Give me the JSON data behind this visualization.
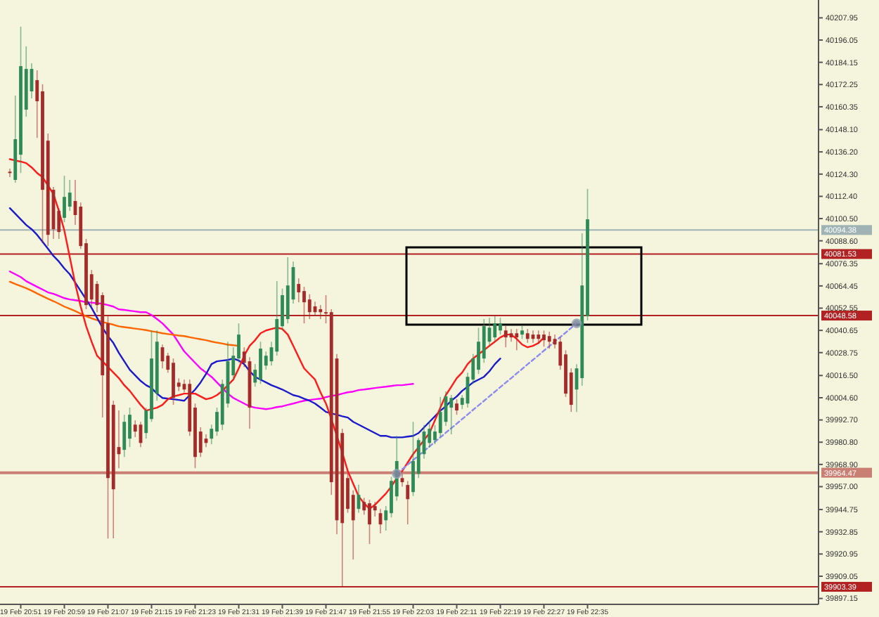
{
  "chart_data": {
    "type": "candlestick",
    "ylim": [
      39894,
      40217.5
    ],
    "categories": [
      null,
      null,
      "19 Feb 20:51",
      null,
      null,
      null,
      null,
      null,
      null,
      null,
      "19 Feb 20:59",
      null,
      null,
      null,
      null,
      null,
      null,
      null,
      "19 Feb 21:07",
      null,
      null,
      null,
      null,
      null,
      null,
      null,
      "19 Feb 21:15",
      null,
      null,
      null,
      null,
      null,
      null,
      null,
      "19 Feb 21:23",
      null,
      null,
      null,
      null,
      null,
      null,
      null,
      "19 Feb 21:31",
      null,
      null,
      null,
      null,
      null,
      null,
      null,
      "19 Feb 21:39",
      null,
      null,
      null,
      null,
      null,
      null,
      null,
      "19 Feb 21:47",
      null,
      null,
      null,
      null,
      null,
      null,
      null,
      "19 Feb 21:55",
      null,
      null,
      null,
      null,
      null,
      null,
      null,
      "19 Feb 22:03",
      null,
      null,
      null,
      null,
      null,
      null,
      null,
      "19 Feb 22:11",
      null,
      null,
      null,
      null,
      null,
      null,
      null,
      "19 Feb 22:19",
      null,
      null,
      null,
      null,
      null,
      null,
      null,
      "19 Feb 22:27",
      null,
      null,
      null,
      null,
      null,
      null,
      null,
      "19 Feb 22:35"
    ],
    "yticks": [
      40207.95,
      40196.05,
      40184.15,
      40172.25,
      40160.35,
      {
        "value": 40148.1,
        "label": "40148.10"
      },
      {
        "value": 40136.2,
        "label": "40136.20"
      },
      {
        "value": 40124.3,
        "label": "40124.30"
      },
      {
        "value": 40112.4,
        "label": "40112.40"
      },
      {
        "value": 40100.5,
        "label": "40100.50"
      },
      {
        "value": 40088.6,
        "label": "40088.60"
      },
      40076.35,
      40064.45,
      40052.55,
      40040.65,
      40028.75,
      {
        "value": 40016.5,
        "label": "40016.50"
      },
      {
        "value": 40004.6,
        "label": "40004.60"
      },
      {
        "value": 39992.7,
        "label": "39992.70"
      },
      {
        "value": 39980.8,
        "label": "39980.80"
      },
      {
        "value": 39968.9,
        "label": "39968.90"
      },
      {
        "value": 39957,
        "label": "39957.00"
      },
      39944.75,
      39932.85,
      39920.95,
      39909.05,
      39897.15
    ],
    "ref_lines": [
      {
        "axis": "y",
        "value": 40094.38,
        "label": "40094.38",
        "color": "#9fb3b5"
      },
      {
        "axis": "y",
        "value": 40081.53,
        "label": "40081.53",
        "color": "#b22222"
      },
      {
        "axis": "y",
        "value": 40048.58,
        "label": "40048.58",
        "color": "#b22222"
      },
      {
        "axis": "y",
        "value": 39964.47,
        "label": "39964.47",
        "color": "#c97f74"
      },
      {
        "axis": "y",
        "value": 39903.39,
        "label": "39903.39",
        "color": "#b22222"
      }
    ],
    "ohlc": [
      [
        40125.6,
        40127.2,
        40122.7,
        40124.9
      ],
      [
        40121.2,
        40166.3,
        40119.7,
        40143.0
      ],
      [
        40134.7,
        40203.2,
        40124.9,
        40182.1
      ],
      [
        40158.8,
        40192.7,
        40155,
        40180.6
      ],
      [
        40168.6,
        40183.6,
        40164.8,
        40180.6
      ],
      [
        40174.6,
        40179.9,
        40143.7,
        40163.3
      ],
      [
        40168.6,
        40172.4,
        40087.3,
        40115.9
      ],
      [
        40142.2,
        40146,
        40085.8,
        40091.8
      ],
      [
        40115.9,
        40117.4,
        40089.6,
        40094.8
      ],
      [
        40104.6,
        40106.1,
        40089.6,
        40093.3
      ],
      [
        40100.9,
        40123.4,
        40098.6,
        40112.1
      ],
      [
        40106.9,
        40121.2,
        40104.6,
        40114.4
      ],
      [
        40109.9,
        40121.2,
        40097.1,
        40102.4
      ],
      [
        40106.9,
        40109.1,
        40084.3,
        40085.8
      ],
      [
        40087.3,
        40089.6,
        40052,
        40054.2
      ],
      [
        40070.7,
        40073,
        40053.4,
        40057.2
      ],
      [
        40065.5,
        40067,
        40050.4,
        40054.2
      ],
      [
        40059.5,
        40061,
        39994,
        40016.6
      ],
      [
        40044.4,
        40048.2,
        39929.3,
        39961.6
      ],
      [
        40000.8,
        40003,
        39929.3,
        39955.6
      ],
      [
        39978.2,
        39997.8,
        39966.9,
        39974.4
      ],
      [
        39976.7,
        39995.5,
        39972.9,
        39991.7
      ],
      [
        39982.7,
        39999.3,
        39978.2,
        39995.5
      ],
      [
        39990.2,
        39992.5,
        39983.5,
        39986.5
      ],
      [
        39990.2,
        39991.7,
        39978.2,
        39980.4
      ],
      [
        39985.7,
        39999.3,
        39982.7,
        39997.8
      ],
      [
        39993.2,
        40040.6,
        39991.7,
        40025.6
      ],
      [
        40006.8,
        40040.6,
        40003,
        40034.6
      ],
      [
        40031.6,
        40033.1,
        40020.3,
        40024.1
      ],
      [
        40027.1,
        40028.6,
        40018,
        40019.6
      ],
      [
        40023.3,
        40025.6,
        40000.8,
        40004.5
      ],
      [
        40012.7,
        40015,
        40008.2,
        40010.5
      ],
      [
        40012,
        40014.3,
        40007.5,
        40009
      ],
      [
        40012,
        40014.3,
        39984.2,
        39986.5
      ],
      [
        39999.3,
        40001.5,
        39966.9,
        39972.9
      ],
      [
        39986.5,
        39988.8,
        39972.9,
        39975.2
      ],
      [
        39982.7,
        39985,
        39978.2,
        39980.4
      ],
      [
        39982.7,
        39990.2,
        39979.7,
        39988
      ],
      [
        39986.5,
        39999.3,
        39984.2,
        39997
      ],
      [
        39990.2,
        40014.3,
        39987.3,
        40012
      ],
      [
        40001.5,
        40034.6,
        39999.3,
        40024.1
      ],
      [
        40016.6,
        40031.6,
        40014.3,
        40027.1
      ],
      [
        40025.6,
        40044.4,
        40023.3,
        40038.4
      ],
      [
        40029.3,
        40031.6,
        40021,
        40023.3
      ],
      [
        40024.1,
        40026.3,
        39988,
        39999.3
      ],
      [
        40012.7,
        40022.6,
        40010.5,
        40019.6
      ],
      [
        40014.3,
        40034.6,
        40012,
        40030.9
      ],
      [
        40021.8,
        40029.3,
        40019.6,
        40027.1
      ],
      [
        40024.1,
        40034.6,
        40021.8,
        40031.6
      ],
      [
        40029.3,
        40067,
        40027.1,
        40046.7
      ],
      [
        40042.9,
        40063,
        40040.6,
        40059.5
      ],
      [
        40046.7,
        40079.8,
        40044.4,
        40064.7
      ],
      [
        40057.2,
        40077.5,
        40055,
        40074.5
      ],
      [
        40065.5,
        40068.5,
        40055.7,
        40061
      ],
      [
        40061.7,
        40064,
        40044.4,
        40055.7
      ],
      [
        40057.2,
        40060,
        40046.7,
        40050.4
      ],
      [
        40053.5,
        40056,
        40048.2,
        40050.4
      ],
      [
        40052,
        40054.2,
        40046.7,
        40050.4
      ],
      [
        40050.4,
        40059.5,
        40044.4,
        40049.7
      ],
      [
        40050.4,
        40052,
        39952.6,
        39959.4
      ],
      [
        40025.6,
        40028,
        39931.5,
        39939
      ],
      [
        39985.7,
        39988,
        39903.7,
        39937.5
      ],
      [
        39961.6,
        39964,
        39943,
        39945.1
      ],
      [
        39952.6,
        39955,
        39918,
        39939
      ],
      [
        39945.1,
        39958,
        39943,
        39952.6
      ],
      [
        39948.8,
        39951,
        39942,
        39944.3
      ],
      [
        39948.1,
        39950,
        39926.3,
        39936.8
      ],
      [
        39946.6,
        39948.8,
        39941,
        39944.3
      ],
      [
        39942.8,
        39945.1,
        39932,
        39936.8
      ],
      [
        39939,
        39946.6,
        39933.5,
        39944.3
      ],
      [
        39942.8,
        39962.3,
        39940.5,
        39960.1
      ],
      [
        39951.8,
        39984.2,
        39949.5,
        39970.7
      ],
      [
        39961.6,
        39963.9,
        39957,
        39959.4
      ],
      [
        39957.9,
        39960,
        39936.8,
        39950.3
      ],
      [
        39954.1,
        39991.7,
        39952,
        39970.7
      ],
      [
        39963.9,
        39983,
        39961.6,
        39981.9
      ],
      [
        39974.4,
        39990,
        39972,
        39986.5
      ],
      [
        39980.4,
        39992,
        39978,
        39988
      ],
      [
        39981.9,
        39990,
        39979.7,
        39986.5
      ],
      [
        39985.7,
        40005,
        39983.5,
        39997
      ],
      [
        39991.7,
        40008,
        39989.5,
        40005.3
      ],
      [
        39999.3,
        40006,
        39985,
        40004.5
      ],
      [
        40001.5,
        40003.8,
        39995.5,
        39997.8
      ],
      [
        40000.8,
        40006,
        39998.5,
        40004.5
      ],
      [
        40001.5,
        40018,
        39999.3,
        40015.8
      ],
      [
        40014.3,
        40028,
        40012,
        40025.6
      ],
      [
        40019.6,
        40042,
        40017.3,
        40034.6
      ],
      [
        40025.6,
        40046.7,
        40023.3,
        40042.9
      ],
      [
        40034.6,
        40047.4,
        40032.4,
        40042.1
      ],
      [
        40036.9,
        40048.2,
        40034.6,
        40044.4
      ],
      [
        40040.6,
        40047.4,
        40038.4,
        40044.4
      ],
      [
        40040.6,
        40043,
        40031.6,
        40036.9
      ],
      [
        40039.1,
        40041.4,
        40034.6,
        40036.9
      ],
      [
        40039.1,
        40041.4,
        40030,
        40036.9
      ],
      [
        40038.4,
        40043,
        40036,
        40040.6
      ],
      [
        40039.1,
        40041.4,
        40034,
        40036.1
      ],
      [
        40038.4,
        40040.6,
        40034,
        40036.1
      ],
      [
        40038.4,
        40040.6,
        40033.5,
        40036.1
      ],
      [
        40038.4,
        40040.6,
        40032,
        40035.4
      ],
      [
        40037.6,
        40040,
        40030.9,
        40034.6
      ],
      [
        40036.1,
        40038.4,
        40031,
        40033.1
      ],
      [
        40034.6,
        40037,
        40019.6,
        40021.8
      ],
      [
        40027.8,
        40030,
        40005,
        40006.8
      ],
      [
        40018.1,
        40020.3,
        39997,
        40000.8
      ],
      [
        40009,
        40022.6,
        39997,
        40020.3
      ],
      [
        40015.1,
        40092.6,
        40011,
        40064.7
      ],
      [
        40048.2,
        40116.4,
        40046,
        40100.1
      ]
    ],
    "colors": [
      "#a52a2a",
      "#2e8b57",
      "#2e8b57",
      "#2e8b57",
      "#2e8b57",
      "#a52a2a",
      "#a52a2a",
      "#a52a2a",
      "#a52a2a",
      "#a52a2a",
      "#2e8b57",
      "#2e8b57",
      "#a52a2a",
      "#a52a2a",
      "#a52a2a",
      "#a52a2a",
      "#a52a2a",
      "#a52a2a",
      "#a52a2a",
      "#a52a2a",
      "#a52a2a",
      "#2e8b57",
      "#2e8b57",
      "#a52a2a",
      "#a52a2a",
      "#2e8b57",
      "#2e8b57",
      "#2e8b57",
      "#a52a2a",
      "#a52a2a",
      "#a52a2a",
      "#a52a2a",
      "#a52a2a",
      "#a52a2a",
      "#a52a2a",
      "#a52a2a",
      "#a52a2a",
      "#2e8b57",
      "#2e8b57",
      "#2e8b57",
      "#2e8b57",
      "#2e8b57",
      "#2e8b57",
      "#a52a2a",
      "#a52a2a",
      "#2e8b57",
      "#2e8b57",
      "#2e8b57",
      "#2e8b57",
      "#2e8b57",
      "#2e8b57",
      "#2e8b57",
      "#2e8b57",
      "#a52a2a",
      "#a52a2a",
      "#a52a2a",
      "#a52a2a",
      "#a52a2a",
      "#a52a2a",
      "#a52a2a",
      "#a52a2a",
      "#a52a2a",
      "#a52a2a",
      "#a52a2a",
      "#2e8b57",
      "#a52a2a",
      "#a52a2a",
      "#a52a2a",
      "#a52a2a",
      "#2e8b57",
      "#2e8b57",
      "#2e8b57",
      "#a52a2a",
      "#a52a2a",
      "#2e8b57",
      "#2e8b57",
      "#2e8b57",
      "#2e8b57",
      "#2e8b57",
      "#2e8b57",
      "#2e8b57",
      "#2e8b57",
      "#a52a2a",
      "#2e8b57",
      "#2e8b57",
      "#2e8b57",
      "#2e8b57",
      "#2e8b57",
      "#2e8b57",
      "#2e8b57",
      "#2e8b57",
      "#a52a2a",
      "#a52a2a",
      "#a52a2a",
      "#2e8b57",
      "#a52a2a",
      "#a52a2a",
      "#a52a2a",
      "#a52a2a",
      "#a52a2a",
      "#a52a2a",
      "#a52a2a",
      "#a52a2a",
      "#a52a2a",
      "#2e8b57",
      "#2e8b57",
      "#2e8b57"
    ],
    "series": [
      {
        "type": "line",
        "color": "#ff00ff",
        "values": [
          40072.2,
          40070.7,
          40069.2,
          40067.0,
          40065.5,
          40064.0,
          40062.5,
          40061.0,
          40060.2,
          40059.1,
          40057.9,
          40057.2,
          40056.8,
          40056.4,
          40055.7,
          40055.5,
          40055.2,
          40054.9,
          40054.2,
          40053.4,
          40051.9,
          40051.6,
          40051.2,
          40050.8,
          40050.4,
          40050.4,
          40048.9,
          40046.7,
          40044.4,
          40041.4,
          40038.4,
          40033.9,
          40029.4,
          40026.3,
          40023.3,
          40020.3,
          40018.1,
          40015.8,
          40012.8,
          40009.8,
          40006.8,
          40004.5,
          40003.0,
          40001.5,
          40000.0,
          39999.3,
          39998.9,
          39998.5,
          39998.9,
          39999.6,
          40000.0,
          40000.8,
          40001.5,
          40002.3,
          40003.0,
          40003.4,
          40003.8,
          40004.1,
          40004.9,
          40005.6,
          40006.0,
          40006.8,
          40007.5,
          40007.9,
          40008.7,
          40009.0,
          40009.4,
          40009.8,
          40010.2,
          40010.5,
          40010.9,
          40011.3,
          40011.3,
          40011.7,
          40012.0,
          null,
          null,
          null,
          null,
          null,
          null,
          null,
          null,
          null,
          null,
          null,
          null,
          null,
          null,
          null,
          null,
          null,
          null,
          null,
          null,
          null,
          null,
          null,
          null,
          null,
          null,
          null,
          null,
          null,
          null,
          null,
          null
        ]
      },
      {
        "type": "line",
        "color": "#ff6600",
        "values": [
          40066.7,
          40065.5,
          40064.4,
          40063.2,
          40061.9,
          40060.4,
          40059.0,
          40057.6,
          40056.3,
          40054.9,
          40053.4,
          40052.2,
          40051.0,
          40049.6,
          40048.2,
          40047.1,
          40046.1,
          40045.2,
          40044.4,
          40043.7,
          40042.8,
          40042.4,
          40042.0,
          40041.6,
          40041.2,
          40040.8,
          40040.2,
          40039.7,
          40039.1,
          40038.7,
          40038.3,
          40037.9,
          40037.6,
          40037.0,
          40036.4,
          40035.9,
          40035.4,
          40034.7,
          40034.1,
          40033.6,
          40033.0,
          40032.7,
          40032.4,
          null,
          null,
          null,
          null,
          null,
          null,
          null,
          null,
          null,
          null,
          null,
          null,
          null,
          null,
          null,
          null,
          null,
          null,
          null,
          null,
          null,
          null,
          null,
          null,
          null,
          null,
          null,
          null,
          null,
          null,
          null,
          null,
          null,
          null,
          null,
          null,
          null,
          null,
          null,
          null,
          null,
          null,
          null,
          null,
          null,
          null,
          null,
          null,
          null,
          null,
          null,
          null,
          null,
          null,
          null,
          null,
          null,
          null,
          null,
          null,
          null,
          null,
          null,
          null
        ]
      },
      {
        "type": "line",
        "color": "#1a1acc",
        "values": [
          40106.1,
          40103.1,
          40100.1,
          40097.1,
          40094.8,
          40091.8,
          40088.1,
          40084.3,
          40080.5,
          40077.5,
          40073.8,
          40070.7,
          40066.2,
          40061.7,
          40057.2,
          40052.7,
          40047.4,
          40042.1,
          40037.6,
          40033.9,
          40028.6,
          40024.1,
          40019.6,
          40016.6,
          40013.6,
          40011.3,
          40009.8,
          40006.8,
          40004.5,
          40004.1,
          40003.8,
          40003.4,
          40003.0,
          40006.0,
          40009.0,
          40012.8,
          40017.3,
          40022.6,
          40024.1,
          40024.5,
          40024.8,
          40025.6,
          40024.5,
          40022.6,
          40018.8,
          40015.8,
          40014.3,
          40012.8,
          40011.3,
          40010.2,
          40009.0,
          40007.5,
          40006.0,
          40005.3,
          40004.1,
          40003.0,
          40001.5,
          39999.3,
          39997.0,
          39996.2,
          39995.5,
          39994.7,
          39994.0,
          39991.7,
          39990.2,
          39988.7,
          39987.2,
          39985.7,
          39984.2,
          39984.2,
          39983.4,
          39983.4,
          39983.4,
          39983.8,
          39984.2,
          39985.7,
          39988.7,
          39991.7,
          39994.7,
          39997.7,
          40000.0,
          40003.0,
          40005.3,
          40008.3,
          40010.5,
          40012.8,
          40014.3,
          40015.8,
          40018.8,
          40022.6,
          40025.6,
          null,
          null,
          null,
          null,
          null,
          null,
          null,
          null,
          null,
          null,
          null,
          null,
          null,
          null,
          null,
          null
        ]
      },
      {
        "type": "line",
        "color": "#ff1a1a",
        "values": [
          40132.3,
          40131.6,
          40131.0,
          40130.2,
          40127.9,
          40124.9,
          40122.7,
          40118.2,
          40113.6,
          40104.6,
          40094.1,
          40079.8,
          40065.5,
          40053.4,
          40042.9,
          40034.6,
          40027.1,
          40024.1,
          40021.1,
          40018.1,
          40015.1,
          40011.3,
          40008.3,
          40004.5,
          40000.8,
          39997.7,
          39998.5,
          39999.3,
          40000.8,
          40003.8,
          40005.3,
          40006.0,
          40006.8,
          40006.8,
          40006.8,
          40005.3,
          40003.8,
          40004.5,
          40006.0,
          40008.3,
          40011.3,
          40014.3,
          40020.3,
          40027.1,
          40032.4,
          40035.4,
          40039.1,
          40040.6,
          40041.4,
          40042.1,
          40041.4,
          40038.4,
          40032.4,
          40026.3,
          40020.3,
          40017.3,
          40014.3,
          40007.5,
          40001.5,
          39993.2,
          39984.2,
          39975.2,
          39965.4,
          39958.6,
          39951.8,
          39948.1,
          39945.1,
          39947.3,
          39950.3,
          39953.3,
          39957.1,
          39961.6,
          39965.4,
          39969.9,
          39974.4,
          39978.2,
          39981.9,
          39985.7,
          39992.5,
          39999.3,
          40006.0,
          40010.5,
          40015.1,
          40018.1,
          40022.6,
          40025.6,
          40027.8,
          40030.1,
          40032.4,
          40034.6,
          40036.9,
          40038.4,
          40038.4,
          40036.1,
          40033.1,
          40031.6,
          40032.4,
          40033.9,
          40036.9,
          null,
          null,
          null,
          null,
          null,
          null,
          null,
          null
        ]
      },
      {
        "type": "line",
        "color": "#8c8cf0",
        "line_style": "dashed",
        "values": [
          null,
          null,
          null,
          null,
          null,
          null,
          null,
          null,
          null,
          null,
          null,
          null,
          null,
          null,
          null,
          null,
          null,
          null,
          null,
          null,
          null,
          null,
          null,
          null,
          null,
          null,
          null,
          null,
          null,
          null,
          null,
          null,
          null,
          null,
          null,
          null,
          null,
          null,
          null,
          null,
          null,
          null,
          null,
          null,
          null,
          null,
          null,
          null,
          null,
          null,
          null,
          null,
          null,
          null,
          null,
          null,
          null,
          null,
          null,
          null,
          null,
          null,
          null,
          null,
          null,
          null,
          null,
          null,
          null,
          null,
          null,
          39963.9,
          39966.3,
          39968.8,
          39971.2,
          39973.7,
          39976.1,
          39978.5,
          39981.0,
          39983.4,
          39985.9,
          39988.3,
          39990.7,
          39993.2,
          39995.6,
          39998.1,
          40000.5,
          40002.9,
          40005.4,
          40007.8,
          40010.3,
          40012.7,
          40015.1,
          40017.6,
          40020.0,
          40022.5,
          40024.9,
          40027.3,
          40029.8,
          40032.2,
          40034.7,
          40037.1,
          40039.5,
          40042.0,
          40044.4,
          null,
          null
        ]
      },
      {
        "type": "scatter",
        "color": "#7d8aa0",
        "marker": "circle",
        "values": [
          null,
          null,
          null,
          null,
          null,
          null,
          null,
          null,
          null,
          null,
          null,
          null,
          null,
          null,
          null,
          null,
          null,
          null,
          null,
          null,
          null,
          null,
          null,
          null,
          null,
          null,
          null,
          null,
          null,
          null,
          null,
          null,
          null,
          null,
          null,
          null,
          null,
          null,
          null,
          null,
          null,
          null,
          null,
          null,
          null,
          null,
          null,
          null,
          null,
          null,
          null,
          null,
          null,
          null,
          null,
          null,
          null,
          null,
          null,
          null,
          null,
          null,
          null,
          null,
          null,
          null,
          null,
          null,
          null,
          null,
          null,
          39963.9,
          null,
          null,
          null,
          null,
          null,
          null,
          null,
          null,
          null,
          null,
          null,
          null,
          null,
          null,
          null,
          null,
          null,
          null,
          null,
          null,
          null,
          null,
          null,
          null,
          null,
          null,
          null,
          null,
          null,
          null,
          null,
          null,
          40044.4,
          null,
          null
        ]
      }
    ]
  }
}
